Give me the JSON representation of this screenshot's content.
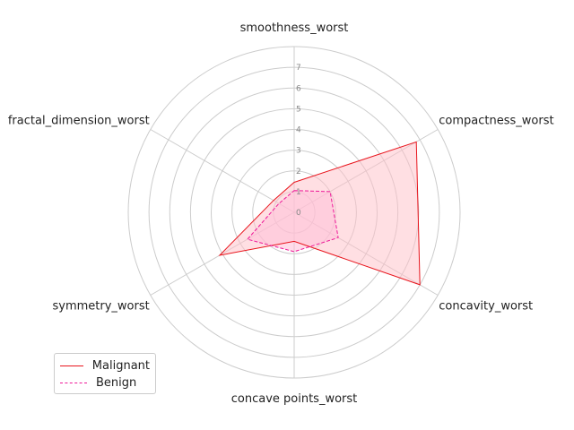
{
  "chart_data": {
    "type": "radar",
    "title": "",
    "axes": [
      "smoothness_worst",
      "compactness_worst",
      "concavity_worst",
      "concave points_worst",
      "symmetry_worst",
      "fractal_dimension_worst"
    ],
    "rlim": [
      0,
      8
    ],
    "r_ticks": [
      "0",
      "1",
      "2",
      "3",
      "4",
      "5",
      "6",
      "7"
    ],
    "grid": true,
    "legend_position": "lower-left",
    "series": [
      {
        "name": "Malignant",
        "values": [
          1.45,
          6.8,
          7.0,
          1.4,
          4.15,
          1.15
        ],
        "color": "#e8141c",
        "line_style": "solid",
        "fill": "#ffc0c8"
      },
      {
        "name": "Benign",
        "values": [
          1.05,
          2.0,
          2.45,
          1.9,
          2.6,
          0.85
        ],
        "color": "#ee1899",
        "line_style": "dashed",
        "fill": "#ffc0d8"
      }
    ]
  }
}
